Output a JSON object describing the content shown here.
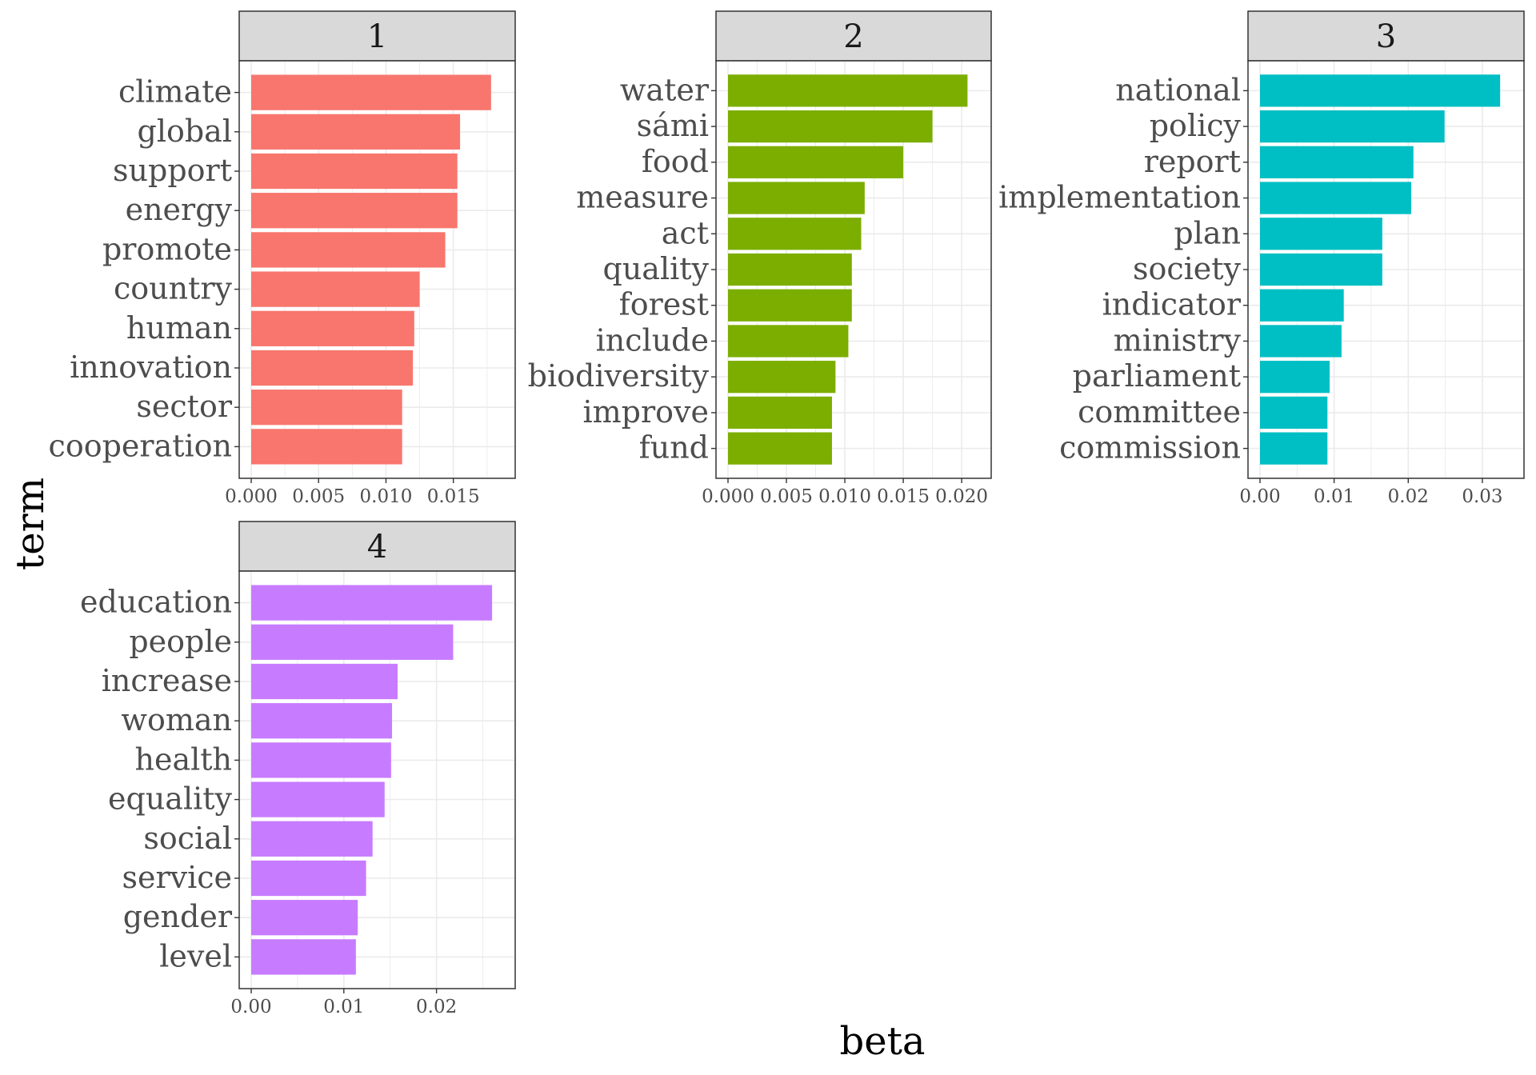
{
  "chart_data": {
    "type": "bar",
    "orientation": "horizontal",
    "xlabel": "beta",
    "ylabel": "term",
    "grid": true,
    "legend": "none",
    "facets": [
      {
        "title": "1",
        "color": "#F8766D",
        "xlim": [
          0,
          0.0187
        ],
        "ticks": [
          0,
          0.005,
          0.01,
          0.015
        ],
        "tick_labels": [
          "0.000",
          "0.005",
          "0.010",
          "0.015"
        ],
        "categories": [
          "climate",
          "global",
          "support",
          "energy",
          "promote",
          "country",
          "human",
          "innovation",
          "sector",
          "cooperation"
        ],
        "values": [
          0.0178,
          0.0155,
          0.0153,
          0.0153,
          0.0144,
          0.0125,
          0.0121,
          0.012,
          0.0112,
          0.0112
        ]
      },
      {
        "title": "2",
        "color": "#7CAE00",
        "xlim": [
          0,
          0.0215
        ],
        "ticks": [
          0,
          0.005,
          0.01,
          0.015,
          0.02
        ],
        "tick_labels": [
          "0.000",
          "0.005",
          "0.010",
          "0.015",
          "0.020"
        ],
        "categories": [
          "water",
          "sámi",
          "food",
          "measure",
          "act",
          "quality",
          "forest",
          "include",
          "biodiversity",
          "improve",
          "fund"
        ],
        "values": [
          0.0205,
          0.0175,
          0.015,
          0.0117,
          0.0114,
          0.0106,
          0.0106,
          0.0103,
          0.0092,
          0.0089,
          0.0089
        ]
      },
      {
        "title": "3",
        "color": "#00BFC4",
        "xlim": [
          0,
          0.034
        ],
        "ticks": [
          0,
          0.01,
          0.02,
          0.03
        ],
        "tick_labels": [
          "0.00",
          "0.01",
          "0.02",
          "0.03"
        ],
        "categories": [
          "national",
          "policy",
          "report",
          "implementation",
          "plan",
          "society",
          "indicator",
          "ministry",
          "parliament",
          "committee",
          "commission"
        ],
        "values": [
          0.0324,
          0.0249,
          0.0207,
          0.0204,
          0.0165,
          0.0165,
          0.0113,
          0.011,
          0.0094,
          0.0091,
          0.0091
        ]
      },
      {
        "title": "4",
        "color": "#C77CFF",
        "xlim": [
          0,
          0.0272
        ],
        "ticks": [
          0,
          0.01,
          0.02
        ],
        "tick_labels": [
          "0.00",
          "0.01",
          "0.02"
        ],
        "categories": [
          "education",
          "people",
          "increase",
          "woman",
          "health",
          "equality",
          "social",
          "service",
          "gender",
          "level"
        ],
        "values": [
          0.026,
          0.0218,
          0.0158,
          0.0152,
          0.0151,
          0.0144,
          0.0131,
          0.0124,
          0.0115,
          0.0113
        ]
      }
    ]
  }
}
